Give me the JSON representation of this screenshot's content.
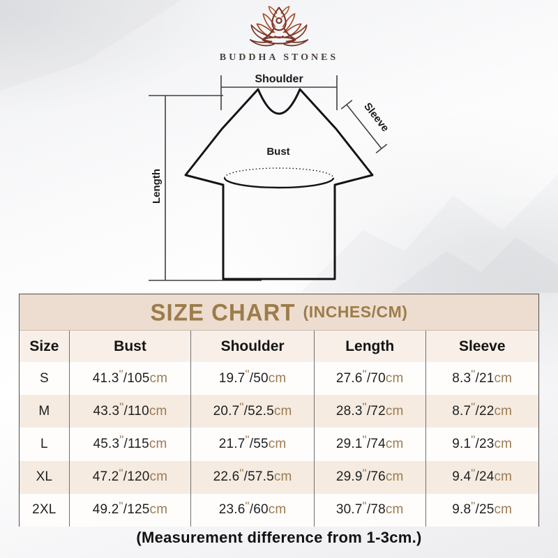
{
  "brand": {
    "name": "BUDDHA STONES",
    "logo_icon": "lotus-meditation-icon"
  },
  "diagram": {
    "shoulder_label": "Shoulder",
    "sleeve_label": "Sleeve",
    "bust_label": "Bust",
    "length_label": "Length"
  },
  "size_chart": {
    "title": "SIZE CHART",
    "title_unit": "(INCHES/CM)",
    "columns": [
      "Size",
      "Bust",
      "Shoulder",
      "Length",
      "Sleeve"
    ],
    "unit_inch_mark": "\"",
    "separator": "/",
    "unit_cm": "cm",
    "rows": [
      {
        "size": "S",
        "bust": {
          "in": "41.3",
          "cm": "105"
        },
        "shoulder": {
          "in": "19.7",
          "cm": "50"
        },
        "length": {
          "in": "27.6",
          "cm": "70"
        },
        "sleeve": {
          "in": "8.3",
          "cm": "21"
        }
      },
      {
        "size": "M",
        "bust": {
          "in": "43.3",
          "cm": "110"
        },
        "shoulder": {
          "in": "20.7",
          "cm": "52.5"
        },
        "length": {
          "in": "28.3",
          "cm": "72"
        },
        "sleeve": {
          "in": "8.7",
          "cm": "22"
        }
      },
      {
        "size": "L",
        "bust": {
          "in": "45.3",
          "cm": "115"
        },
        "shoulder": {
          "in": "21.7",
          "cm": "55"
        },
        "length": {
          "in": "29.1",
          "cm": "74"
        },
        "sleeve": {
          "in": "9.1",
          "cm": "23"
        }
      },
      {
        "size": "XL",
        "bust": {
          "in": "47.2",
          "cm": "120"
        },
        "shoulder": {
          "in": "22.6",
          "cm": "57.5"
        },
        "length": {
          "in": "29.9",
          "cm": "76"
        },
        "sleeve": {
          "in": "9.4",
          "cm": "24"
        }
      },
      {
        "size": "2XL",
        "bust": {
          "in": "49.2",
          "cm": "125"
        },
        "shoulder": {
          "in": "23.6",
          "cm": "60"
        },
        "length": {
          "in": "30.7",
          "cm": "78"
        },
        "sleeve": {
          "in": "9.8",
          "cm": "25"
        }
      }
    ]
  },
  "footer": {
    "note": "(Measurement difference from 1-3cm.)"
  },
  "colors": {
    "title_gold": "#9d7c4a",
    "unit_accent": "#9c7b50",
    "banner_bg": "#ecddd0",
    "header_row_bg": "#f8efe8",
    "alt_row_bg": "#f5ebe1",
    "row_bg": "#fefdfc",
    "table_border": "#4e4e4e",
    "logo_maroon": "#7a3527",
    "logo_orange": "#b0532f"
  },
  "chart_data": {
    "type": "table",
    "title": "SIZE CHART (INCHES/CM)",
    "columns": [
      "Size",
      "Bust",
      "Shoulder",
      "Length",
      "Sleeve"
    ],
    "rows": [
      [
        "S",
        "41.3\"/105cm",
        "19.7\"/50cm",
        "27.6\"/70cm",
        "8.3\"/21cm"
      ],
      [
        "M",
        "43.3\"/110cm",
        "20.7\"/52.5cm",
        "28.3\"/72cm",
        "8.7\"/22cm"
      ],
      [
        "L",
        "45.3\"/115cm",
        "21.7\"/55cm",
        "29.1\"/74cm",
        "9.1\"/23cm"
      ],
      [
        "XL",
        "47.2\"/120cm",
        "22.6\"/57.5cm",
        "29.9\"/76cm",
        "9.4\"/24cm"
      ],
      [
        "2XL",
        "49.2\"/125cm",
        "23.6\"/60cm",
        "30.7\"/78cm",
        "9.8\"/25cm"
      ]
    ],
    "note": "(Measurement difference from 1-3cm.)"
  }
}
